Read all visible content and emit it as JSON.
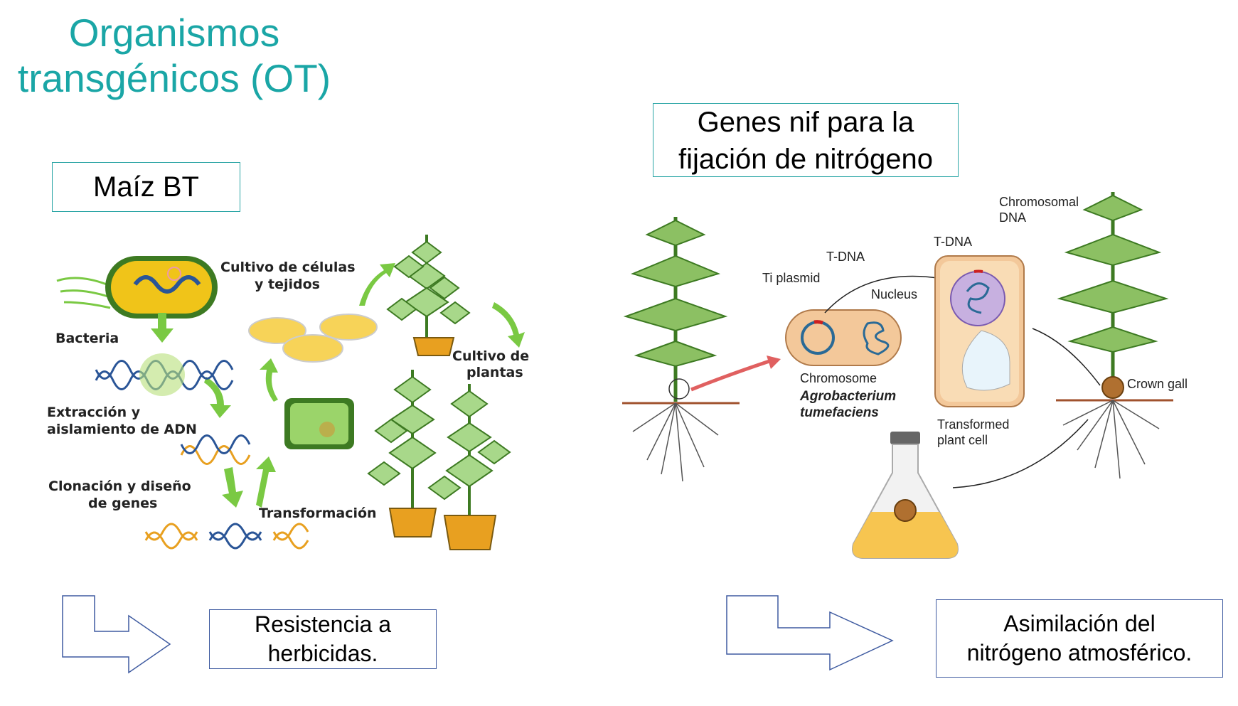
{
  "title": {
    "line1": "Organismos",
    "line2": "transgénicos (OT)"
  },
  "left": {
    "box_label": "Maíz BT",
    "diagram_labels": {
      "bacteria": "Bacteria",
      "cultivo_celulas_1": "Cultivo de células",
      "cultivo_celulas_2": "y tejidos",
      "extraccion_1": "Extracción y",
      "extraccion_2": "aislamiento de ADN",
      "cultivo_plantas_1": "Cultivo de",
      "cultivo_plantas_2": "plantas",
      "clonacion_1": "Clonación y diseño",
      "clonacion_2": "de genes",
      "transformacion": "Transformación"
    },
    "result_line1": "Resistencia a",
    "result_line2": "herbicidas."
  },
  "right": {
    "box_line1": "Genes nif para la",
    "box_line2": "fijación de nitrógeno",
    "diagram_labels": {
      "chromosomal_dna_1": "Chromosomal",
      "chromosomal_dna_2": "DNA",
      "t_dna_a": "T-DNA",
      "t_dna_b": "T-DNA",
      "ti_plasmid": "Ti plasmid",
      "nucleus": "Nucleus",
      "chromosome": "Chromosome",
      "agro_1": "Agrobacterium",
      "agro_2": "tumefaciens",
      "transformed_1": "Transformed",
      "transformed_2": "plant cell",
      "crown_gall": "Crown gall"
    },
    "result_line1": "Asimilación del",
    "result_line2": "nitrógeno atmosférico."
  },
  "colors": {
    "title": "#1aa6a6",
    "teal_border": "#2aa5a5",
    "navy_border": "#3e5aa0",
    "arrow_green": "#7ac943",
    "leaf": "#a8d88a"
  }
}
